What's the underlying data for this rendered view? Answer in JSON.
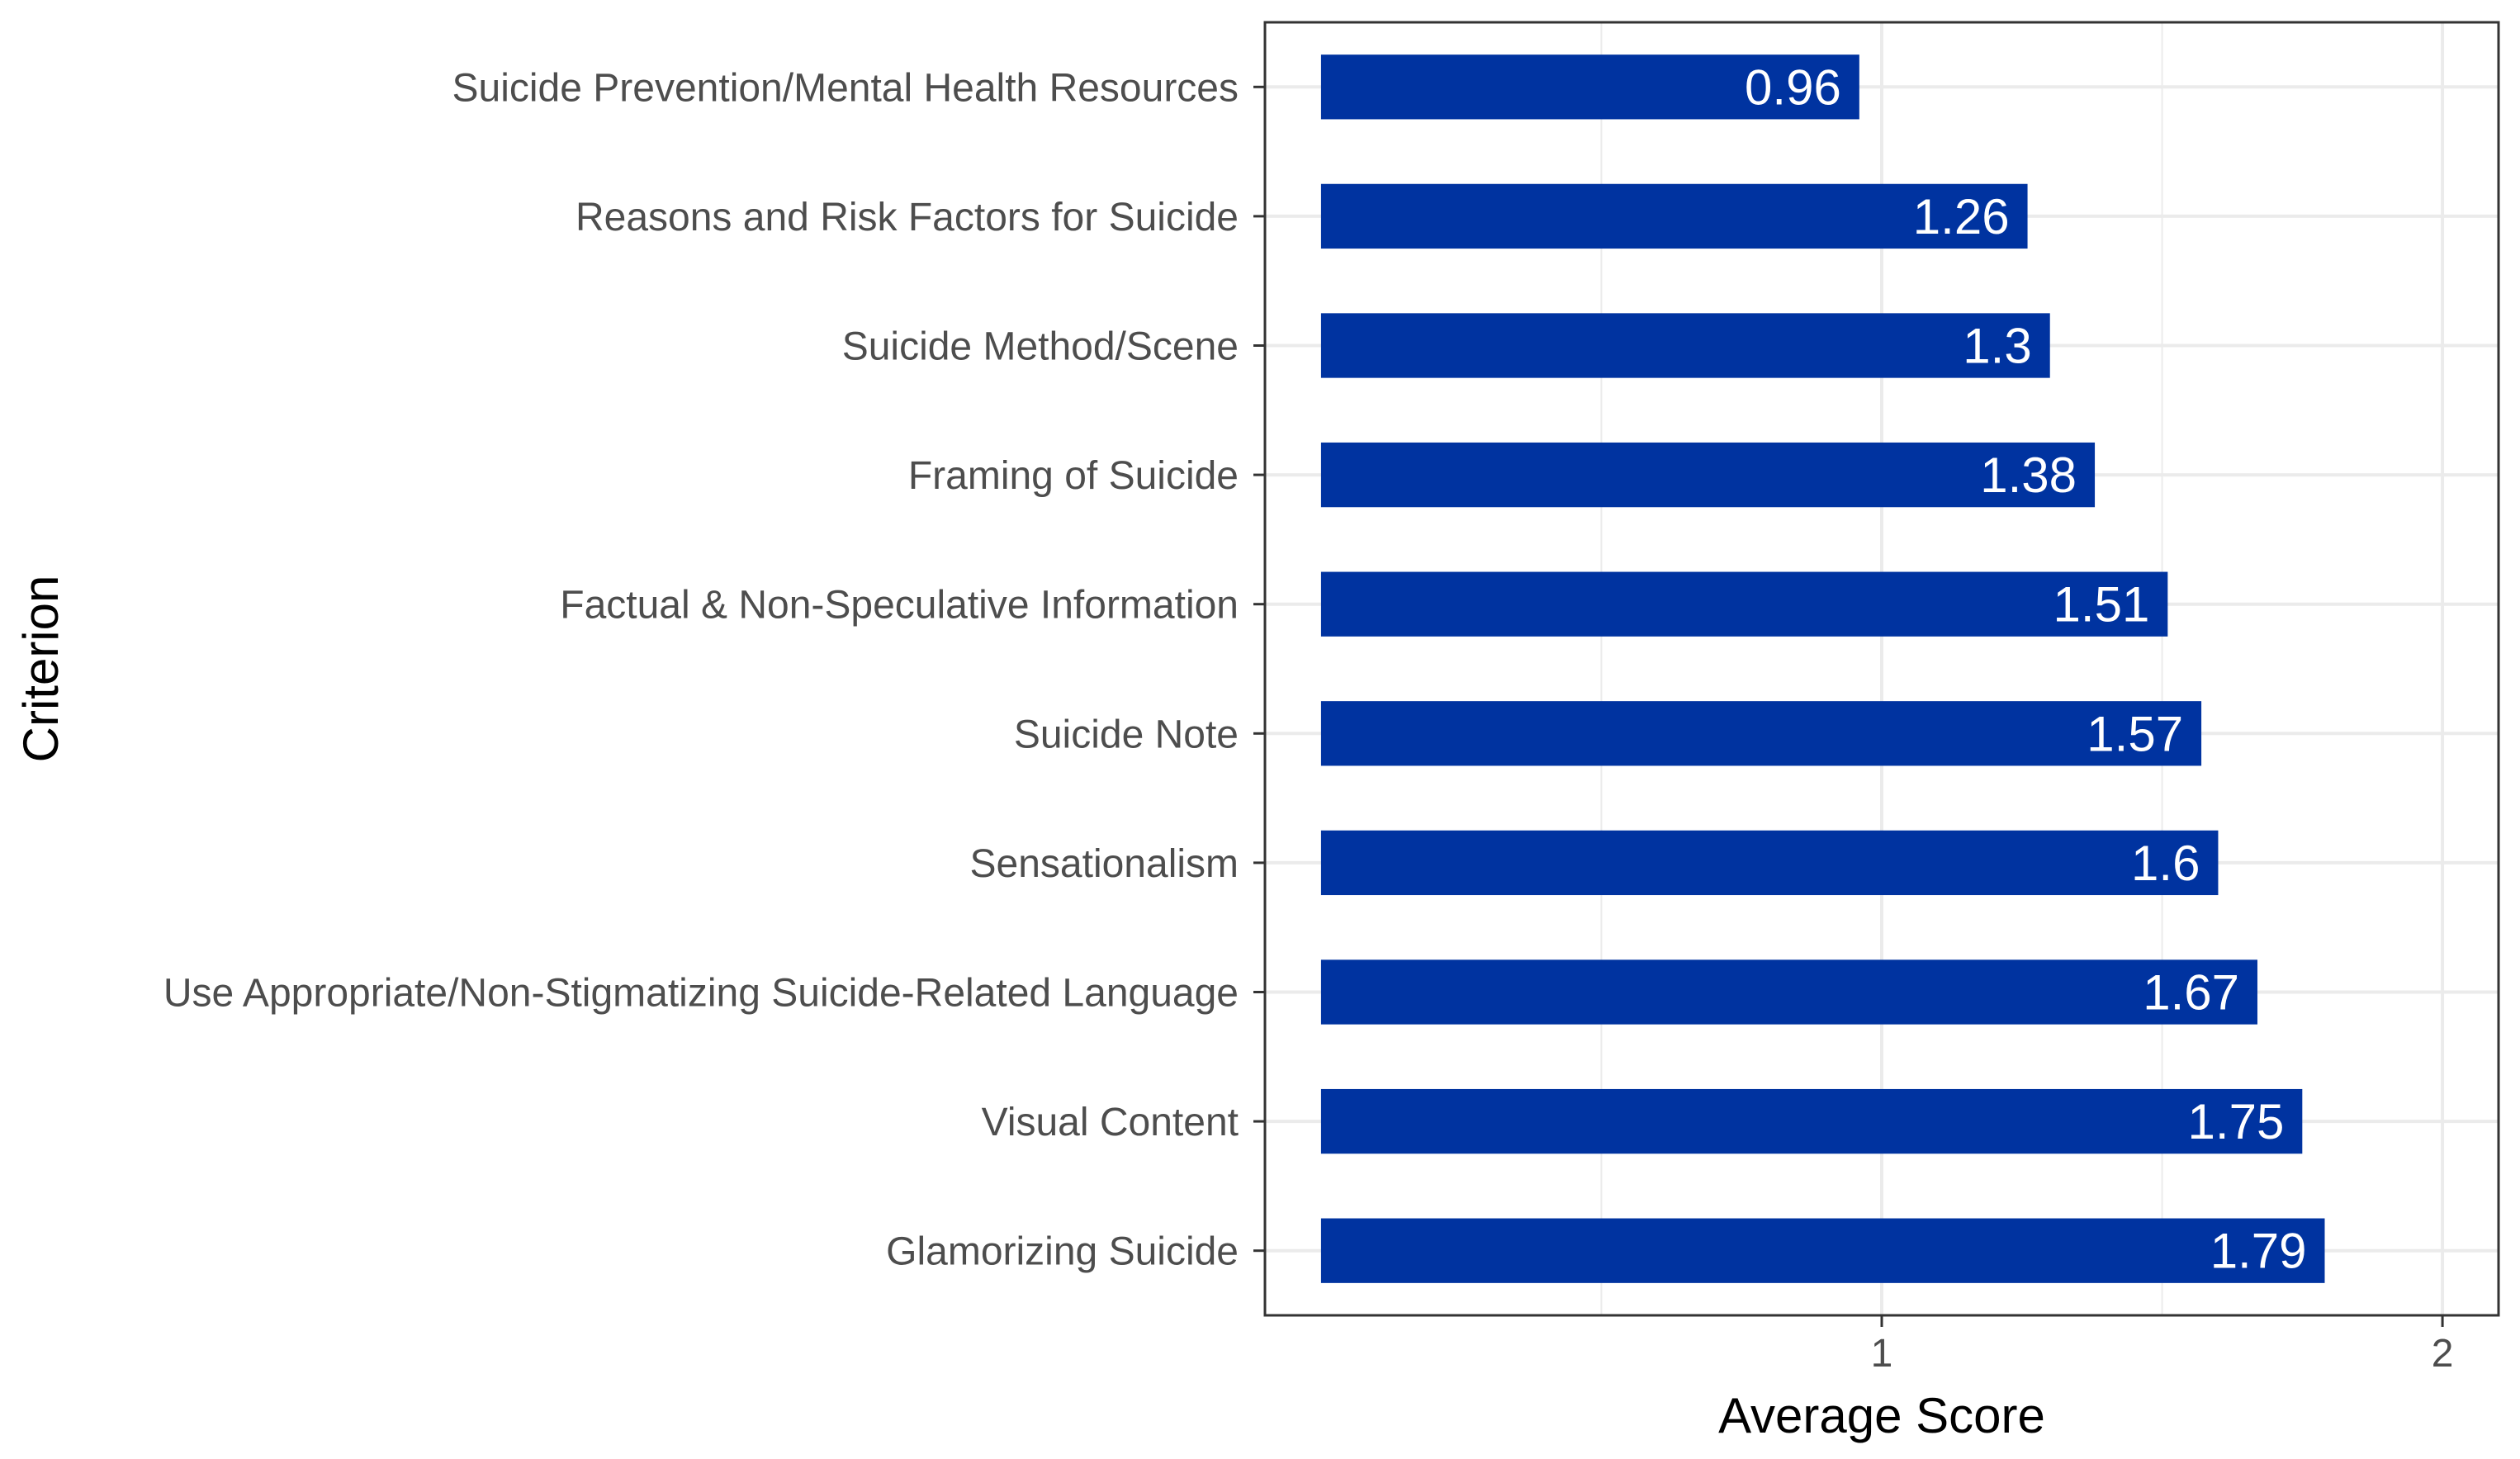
{
  "chart_data": {
    "type": "bar",
    "orientation": "horizontal",
    "categories": [
      "Suicide Prevention/Mental Health Resources",
      "Reasons and Risk Factors for Suicide",
      "Suicide Method/Scene",
      "Framing of Suicide",
      "Factual & Non-Speculative Information",
      "Suicide Note",
      "Sensationalism",
      "Use Appropriate/Non-Stigmatizing Suicide-Related Language",
      "Visual Content",
      "Glamorizing Suicide"
    ],
    "values": [
      0.96,
      1.26,
      1.3,
      1.38,
      1.51,
      1.57,
      1.6,
      1.67,
      1.75,
      1.79
    ],
    "data_labels": [
      "0.96",
      "1.26",
      "1.3",
      "1.38",
      "1.51",
      "1.57",
      "1.6",
      "1.67",
      "1.75",
      "1.79"
    ],
    "xlabel": "Average Score",
    "ylabel": "Criterion",
    "xlim": [
      -0.1,
      2.1
    ],
    "x_ticks": [
      1,
      2
    ],
    "x_tick_labels": [
      "1",
      "2"
    ],
    "grid": true,
    "bar_color": "#0033A0",
    "label_color": "#ffffff",
    "grid_color": "#ebebeb",
    "panel_border_color": "#333333"
  }
}
